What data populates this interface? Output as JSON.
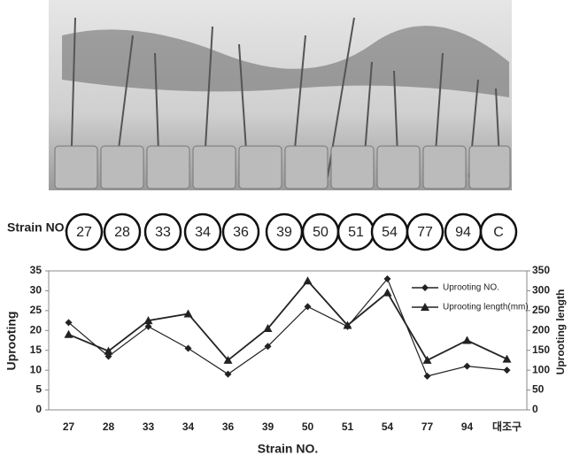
{
  "strain_row": {
    "label": "Strain NO.",
    "items": [
      "27",
      "28",
      "33",
      "34",
      "36",
      "39",
      "50",
      "51",
      "54",
      "77",
      "94",
      "C"
    ]
  },
  "chart_data": {
    "type": "line",
    "x_label": "Strain  NO.",
    "y_label": "Uprooting",
    "y2_label": "Uprooting length",
    "categories": [
      "27",
      "28",
      "33",
      "34",
      "36",
      "39",
      "50",
      "51",
      "54",
      "77",
      "94",
      "대조구"
    ],
    "series": [
      {
        "name": "Uprooting NO.",
        "color": "#222222",
        "marker": "diamond",
        "values": [
          22,
          13.5,
          21,
          15.5,
          9,
          16,
          26,
          21,
          33,
          8.5,
          11,
          10
        ]
      },
      {
        "name": "Uprooting length(mm)",
        "color": "#222222",
        "marker": "triangle",
        "axis": "y2",
        "values": [
          190,
          148,
          225,
          242,
          125,
          205,
          325,
          213,
          295,
          125,
          175,
          128
        ]
      }
    ],
    "ylim": [
      0,
      35
    ],
    "yticks": [
      0,
      5,
      10,
      15,
      20,
      25,
      30,
      35
    ],
    "y2lim": [
      0,
      350
    ],
    "y2ticks": [
      0,
      50,
      100,
      150,
      200,
      250,
      300,
      350
    ],
    "legend": "top-right"
  }
}
